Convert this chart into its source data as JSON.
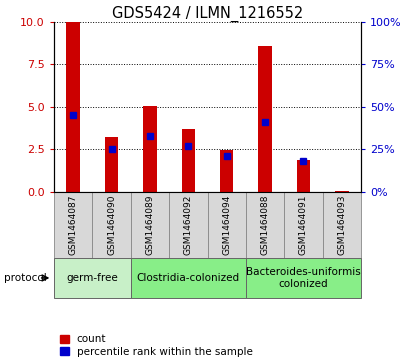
{
  "title": "GDS5424 / ILMN_1216552",
  "samples": [
    "GSM1464087",
    "GSM1464090",
    "GSM1464089",
    "GSM1464092",
    "GSM1464094",
    "GSM1464088",
    "GSM1464091",
    "GSM1464093"
  ],
  "counts": [
    10.0,
    3.2,
    5.05,
    3.7,
    2.45,
    8.6,
    1.85,
    0.02
  ],
  "percentiles": [
    45,
    25,
    33,
    27,
    21,
    41,
    18,
    0
  ],
  "ylim_left": [
    0,
    10
  ],
  "ylim_right": [
    0,
    100
  ],
  "yticks_left": [
    0,
    2.5,
    5,
    7.5,
    10
  ],
  "yticks_right": [
    0,
    25,
    50,
    75,
    100
  ],
  "bar_color": "#cc0000",
  "percentile_color": "#0000cc",
  "groups": [
    {
      "label": "germ-free",
      "start": 0,
      "end": 1,
      "color": "#c8f0c8"
    },
    {
      "label": "Clostridia-colonized",
      "start": 2,
      "end": 4,
      "color": "#88ee88"
    },
    {
      "label": "Bacteroides-uniformis\ncolonized",
      "start": 5,
      "end": 7,
      "color": "#88ee88"
    }
  ],
  "protocol_label": "protocol",
  "legend_count_label": "count",
  "legend_percentile_label": "percentile rank within the sample",
  "bar_width": 0.35,
  "tick_label_fontsize": 6.5,
  "title_fontsize": 10.5,
  "group_label_fontsize": 7.5,
  "left_axis_color": "#cc0000",
  "right_axis_color": "#0000cc",
  "sample_cell_color": "#d8d8d8",
  "sample_cell_edgecolor": "#888888"
}
